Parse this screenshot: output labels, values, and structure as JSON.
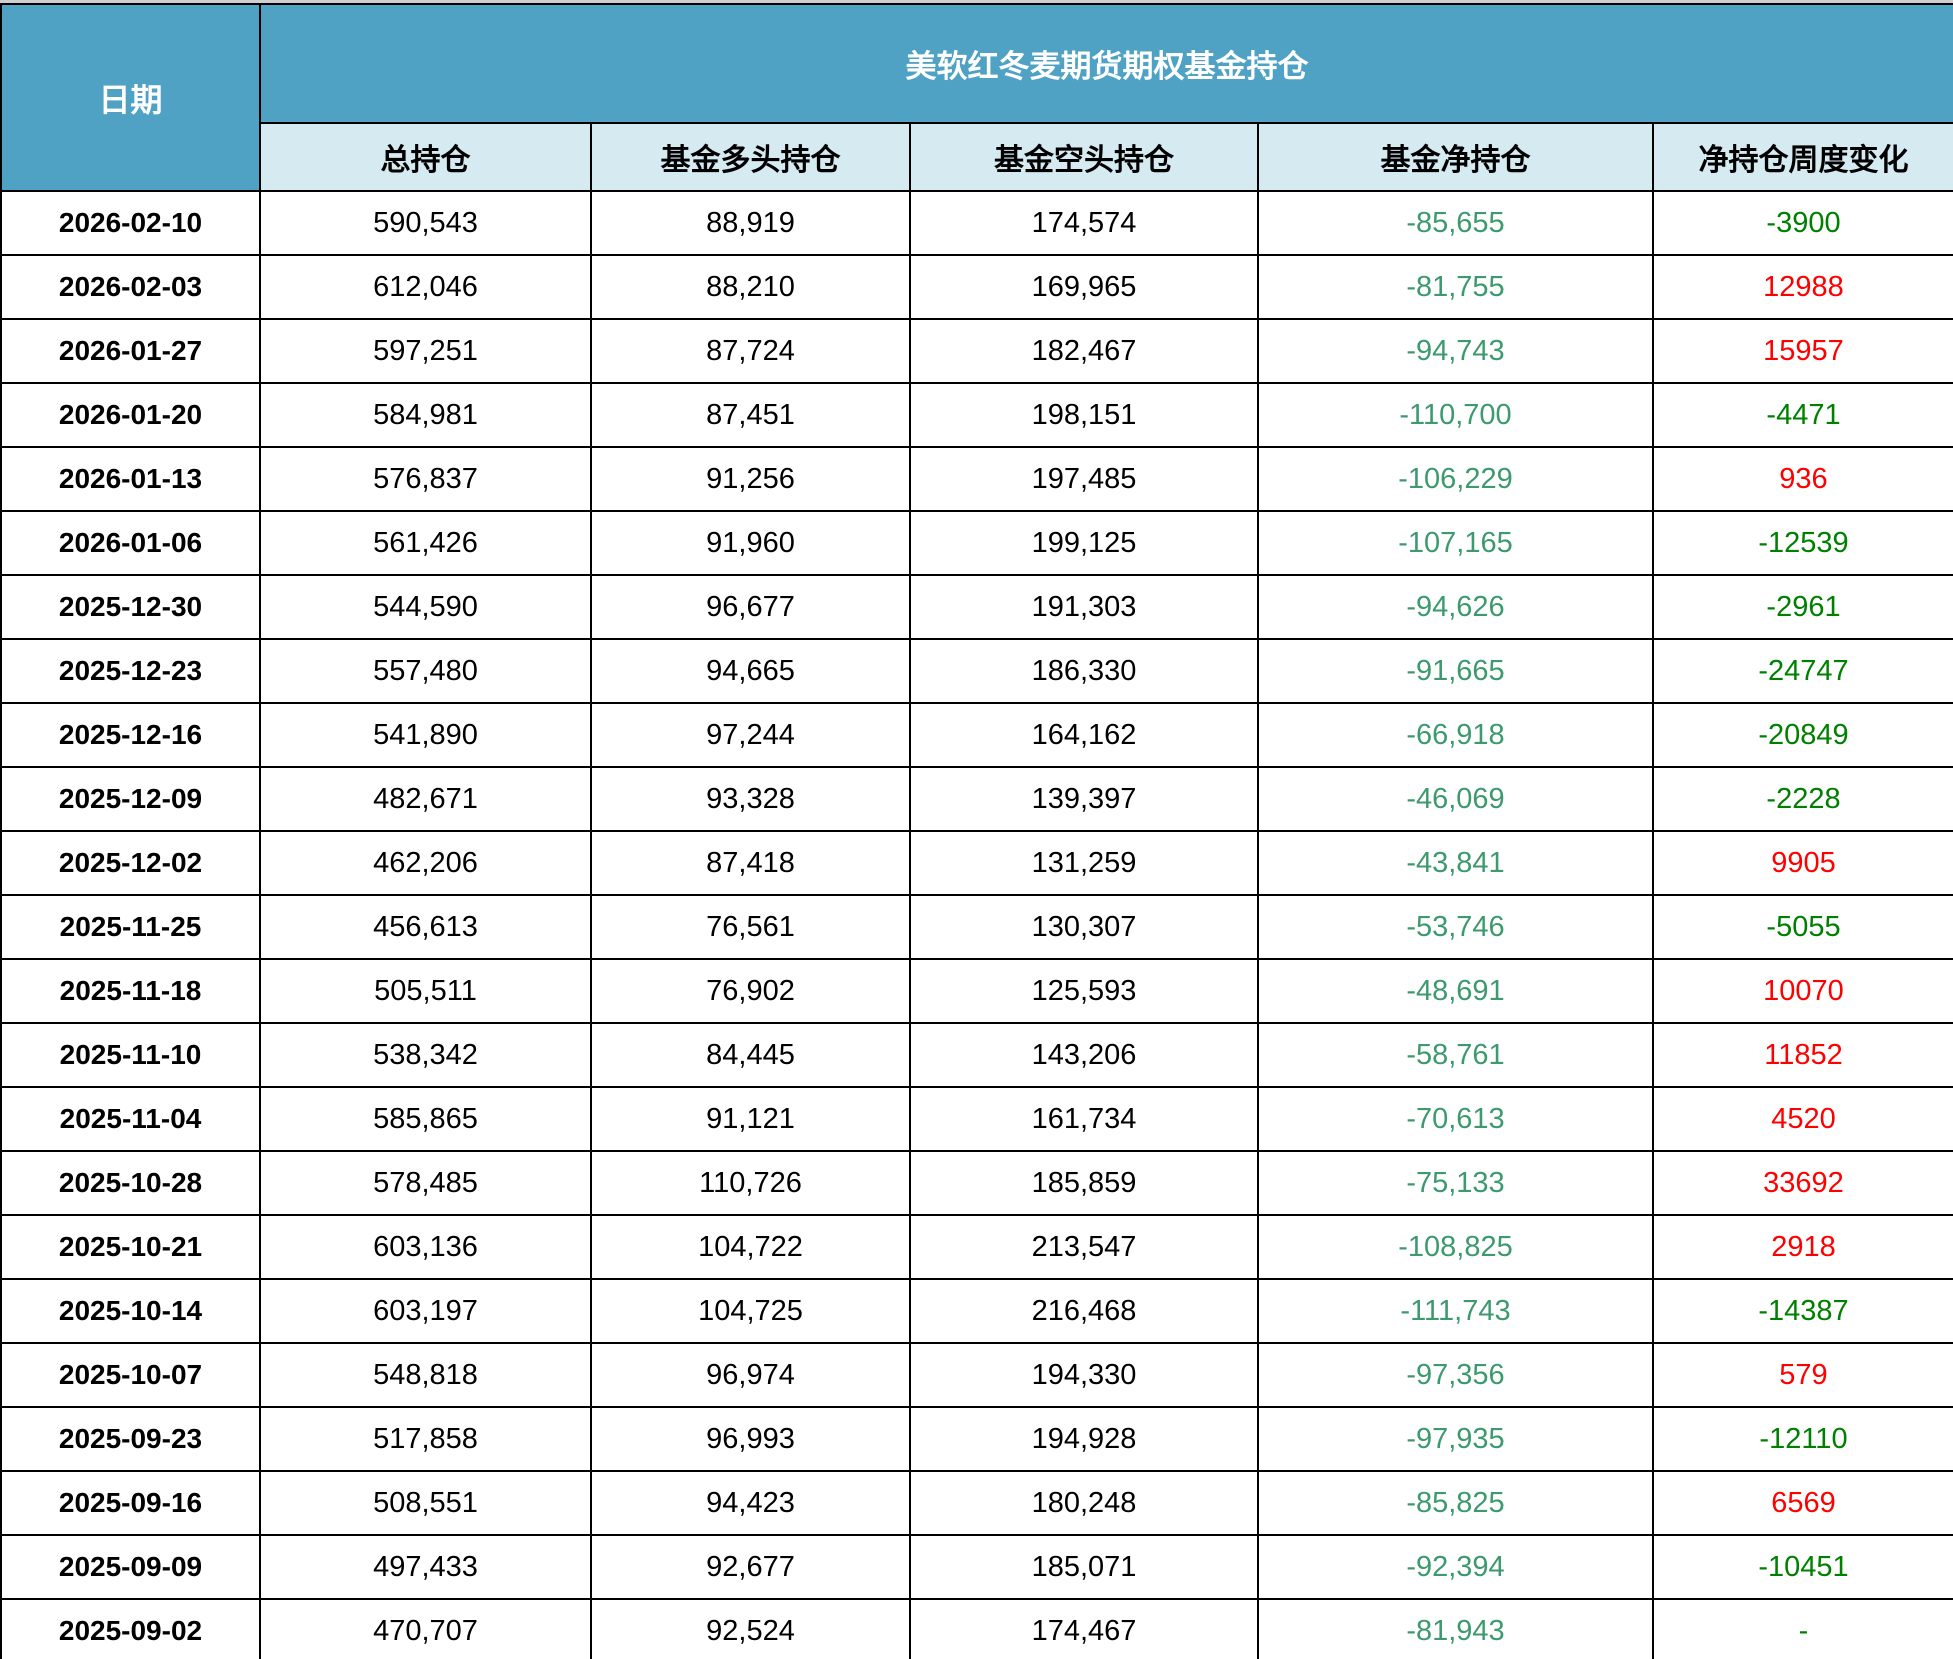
{
  "header": {
    "date_label": "日期",
    "title": "美软红冬麦期货期权基金持仓",
    "columns": [
      "总持仓",
      "基金多头持仓",
      "基金空头持仓",
      "基金净持仓",
      "净持仓周度变化"
    ]
  },
  "colors": {
    "header_bg": "#4FA2C4",
    "subheader_bg": "#D6EAF2",
    "net_green": "#3D9A6E",
    "change_positive_red": "#FF0000",
    "change_negative_green": "#008000"
  },
  "chart_data": {
    "type": "table",
    "title": "美软红冬麦期货期权基金持仓",
    "columns": [
      "日期",
      "总持仓",
      "基金多头持仓",
      "基金空头持仓",
      "基金净持仓",
      "净持仓周度变化"
    ],
    "rows": [
      {
        "date": "2026-02-10",
        "total": "590,543",
        "long": "88,919",
        "short": "174,574",
        "net": "-85,655",
        "change": "-3900",
        "change_dir": "neg"
      },
      {
        "date": "2026-02-03",
        "total": "612,046",
        "long": "88,210",
        "short": "169,965",
        "net": "-81,755",
        "change": "12988",
        "change_dir": "pos"
      },
      {
        "date": "2026-01-27",
        "total": "597,251",
        "long": "87,724",
        "short": "182,467",
        "net": "-94,743",
        "change": "15957",
        "change_dir": "pos"
      },
      {
        "date": "2026-01-20",
        "total": "584,981",
        "long": "87,451",
        "short": "198,151",
        "net": "-110,700",
        "change": "-4471",
        "change_dir": "neg"
      },
      {
        "date": "2026-01-13",
        "total": "576,837",
        "long": "91,256",
        "short": "197,485",
        "net": "-106,229",
        "change": "936",
        "change_dir": "pos"
      },
      {
        "date": "2026-01-06",
        "total": "561,426",
        "long": "91,960",
        "short": "199,125",
        "net": "-107,165",
        "change": "-12539",
        "change_dir": "neg"
      },
      {
        "date": "2025-12-30",
        "total": "544,590",
        "long": "96,677",
        "short": "191,303",
        "net": "-94,626",
        "change": "-2961",
        "change_dir": "neg"
      },
      {
        "date": "2025-12-23",
        "total": "557,480",
        "long": "94,665",
        "short": "186,330",
        "net": "-91,665",
        "change": "-24747",
        "change_dir": "neg"
      },
      {
        "date": "2025-12-16",
        "total": "541,890",
        "long": "97,244",
        "short": "164,162",
        "net": "-66,918",
        "change": "-20849",
        "change_dir": "neg"
      },
      {
        "date": "2025-12-09",
        "total": "482,671",
        "long": "93,328",
        "short": "139,397",
        "net": "-46,069",
        "change": "-2228",
        "change_dir": "neg"
      },
      {
        "date": "2025-12-02",
        "total": "462,206",
        "long": "87,418",
        "short": "131,259",
        "net": "-43,841",
        "change": "9905",
        "change_dir": "pos"
      },
      {
        "date": "2025-11-25",
        "total": "456,613",
        "long": "76,561",
        "short": "130,307",
        "net": "-53,746",
        "change": "-5055",
        "change_dir": "neg"
      },
      {
        "date": "2025-11-18",
        "total": "505,511",
        "long": "76,902",
        "short": "125,593",
        "net": "-48,691",
        "change": "10070",
        "change_dir": "pos"
      },
      {
        "date": "2025-11-10",
        "total": "538,342",
        "long": "84,445",
        "short": "143,206",
        "net": "-58,761",
        "change": "11852",
        "change_dir": "pos"
      },
      {
        "date": "2025-11-04",
        "total": "585,865",
        "long": "91,121",
        "short": "161,734",
        "net": "-70,613",
        "change": "4520",
        "change_dir": "pos"
      },
      {
        "date": "2025-10-28",
        "total": "578,485",
        "long": "110,726",
        "short": "185,859",
        "net": "-75,133",
        "change": "33692",
        "change_dir": "pos"
      },
      {
        "date": "2025-10-21",
        "total": "603,136",
        "long": "104,722",
        "short": "213,547",
        "net": "-108,825",
        "change": "2918",
        "change_dir": "pos"
      },
      {
        "date": "2025-10-14",
        "total": "603,197",
        "long": "104,725",
        "short": "216,468",
        "net": "-111,743",
        "change": "-14387",
        "change_dir": "neg"
      },
      {
        "date": "2025-10-07",
        "total": "548,818",
        "long": "96,974",
        "short": "194,330",
        "net": "-97,356",
        "change": "579",
        "change_dir": "pos"
      },
      {
        "date": "2025-09-23",
        "total": "517,858",
        "long": "96,993",
        "short": "194,928",
        "net": "-97,935",
        "change": "-12110",
        "change_dir": "neg"
      },
      {
        "date": "2025-09-16",
        "total": "508,551",
        "long": "94,423",
        "short": "180,248",
        "net": "-85,825",
        "change": "6569",
        "change_dir": "pos"
      },
      {
        "date": "2025-09-09",
        "total": "497,433",
        "long": "92,677",
        "short": "185,071",
        "net": "-92,394",
        "change": "-10451",
        "change_dir": "neg"
      },
      {
        "date": "2025-09-02",
        "total": "470,707",
        "long": "92,524",
        "short": "174,467",
        "net": "-81,943",
        "change": "-",
        "change_dir": "neg"
      }
    ]
  }
}
